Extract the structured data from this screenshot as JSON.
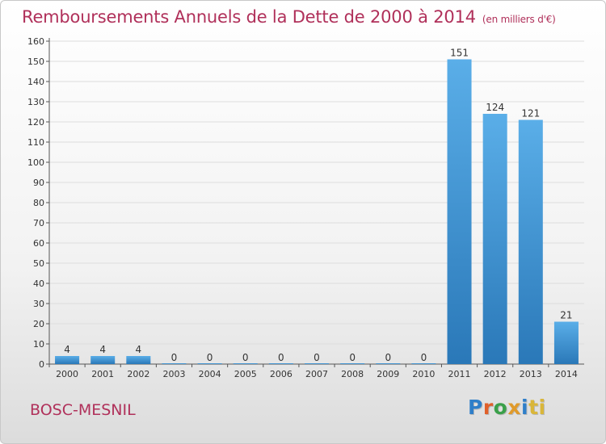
{
  "title": "Remboursements Annuels de la Dette de 2000 à 2014",
  "unit": "(en milliers d'€)",
  "commune": "BOSC-MESNIL",
  "logo": [
    "P",
    "r",
    "o",
    "x",
    "i",
    "ti"
  ],
  "colors": {
    "title": "#b0305a",
    "bar_top": "#5aaee8",
    "bar_bottom": "#2a78b8",
    "axis": "#555555",
    "grid": "#dddddd"
  },
  "chart_data": {
    "type": "bar",
    "categories": [
      "2000",
      "2001",
      "2002",
      "2003",
      "2004",
      "2005",
      "2006",
      "2007",
      "2008",
      "2009",
      "2010",
      "2011",
      "2012",
      "2013",
      "2014"
    ],
    "values": [
      4,
      4,
      4,
      0,
      0,
      0,
      0,
      0,
      0,
      0,
      0,
      151,
      124,
      121,
      21
    ],
    "ylim": [
      0,
      160
    ],
    "yticks": [
      0,
      10,
      20,
      30,
      40,
      50,
      60,
      70,
      80,
      90,
      100,
      110,
      120,
      130,
      140,
      150,
      160
    ],
    "grid": true,
    "data_labels": true
  }
}
